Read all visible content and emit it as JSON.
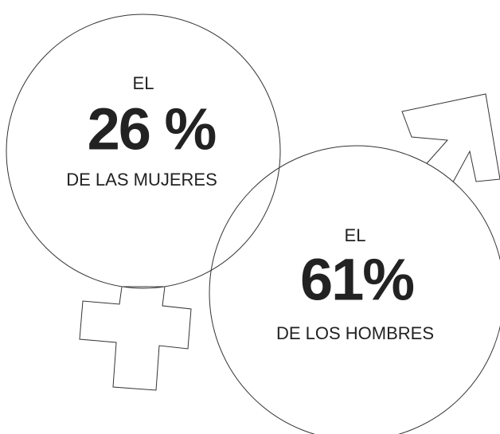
{
  "women": {
    "prefix": "EL",
    "value": "26 %",
    "suffix": "DE LAS MUJERES"
  },
  "men": {
    "prefix": "EL",
    "value": "61%",
    "suffix": "DE LOS HOMBRES"
  }
}
